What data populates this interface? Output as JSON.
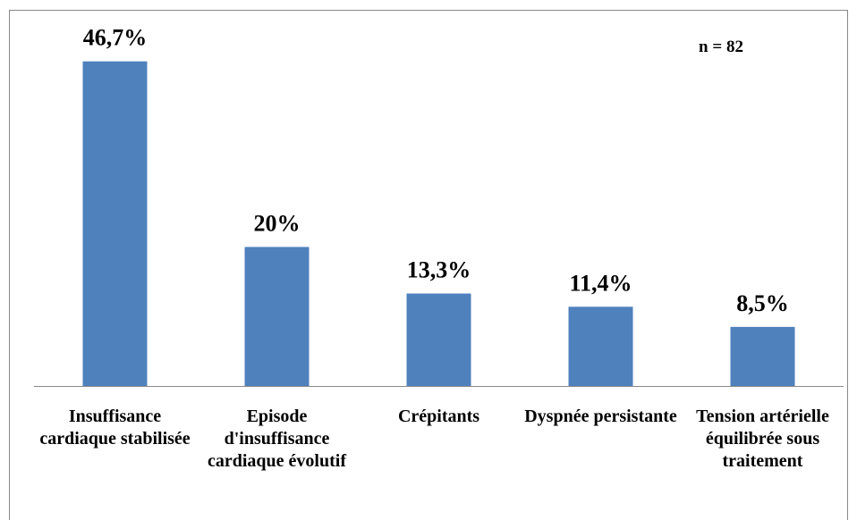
{
  "chart_data": {
    "type": "bar",
    "categories": [
      "Insuffisance cardiaque stabilisée",
      "Episode d'insuffisance cardiaque évolutif",
      "Crépitants",
      "Dyspnée persistante",
      "Tension artérielle équilibrée sous traitement"
    ],
    "values": [
      46.7,
      20,
      13.3,
      11.4,
      8.5
    ],
    "value_labels": [
      "46,7%",
      "20%",
      "13,3%",
      "11,4%",
      "8,5%"
    ],
    "annotation": "n = 82",
    "color": "#4f81bd",
    "ylim": [
      0,
      50
    ]
  }
}
